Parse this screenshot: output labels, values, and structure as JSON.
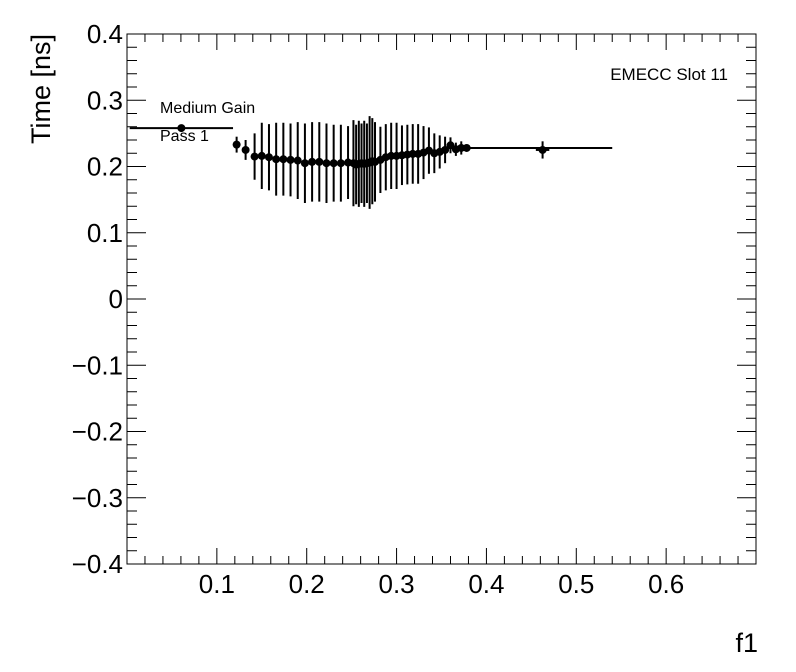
{
  "chart_data": {
    "type": "scatter",
    "title": "",
    "xlabel": "f1",
    "ylabel": "Time [ns]",
    "xlim": [
      0.0,
      0.7
    ],
    "ylim": [
      -0.4,
      0.4
    ],
    "grid": false,
    "legend": "none",
    "xticks": [
      {
        "value": 0.1,
        "label": "0.1"
      },
      {
        "value": 0.2,
        "label": "0.2"
      },
      {
        "value": 0.3,
        "label": "0.3"
      },
      {
        "value": 0.4,
        "label": "0.4"
      },
      {
        "value": 0.5,
        "label": "0.5"
      },
      {
        "value": 0.6,
        "label": "0.6"
      }
    ],
    "yticks": [
      {
        "value": 0.4,
        "label": "0.4"
      },
      {
        "value": 0.3,
        "label": "0.3"
      },
      {
        "value": 0.2,
        "label": "0.2"
      },
      {
        "value": 0.1,
        "label": "0.1"
      },
      {
        "value": 0.0,
        "label": "0"
      },
      {
        "value": -0.1,
        "label": "−0.1"
      },
      {
        "value": -0.2,
        "label": "−0.2"
      },
      {
        "value": -0.3,
        "label": "−0.3"
      },
      {
        "value": -0.4,
        "label": "−0.4"
      }
    ],
    "annotations": {
      "gain": "Medium Gain",
      "pass": "Pass 1",
      "slot": "EMECC Slot 11"
    },
    "marker_color": "#000000",
    "series": [
      {
        "points": [
          {
            "x": 0.0605,
            "xlo": 0.003,
            "xhi": 0.118,
            "y": 0.258,
            "yerr": 0.0
          },
          {
            "x": 0.122,
            "xlo": 0.118,
            "xhi": 0.126,
            "y": 0.233,
            "yerr": 0.012
          },
          {
            "x": 0.132,
            "xlo": 0.128,
            "xhi": 0.136,
            "y": 0.225,
            "yerr": 0.015
          },
          {
            "x": 0.142,
            "xlo": 0.138,
            "xhi": 0.146,
            "y": 0.215,
            "yerr": 0.035
          },
          {
            "x": 0.15,
            "y": 0.216,
            "yerr": 0.05
          },
          {
            "x": 0.158,
            "y": 0.214,
            "yerr": 0.05
          },
          {
            "x": 0.166,
            "y": 0.211,
            "yerr": 0.055
          },
          {
            "x": 0.174,
            "y": 0.211,
            "yerr": 0.055
          },
          {
            "x": 0.182,
            "y": 0.21,
            "yerr": 0.055
          },
          {
            "x": 0.19,
            "y": 0.209,
            "yerr": 0.058
          },
          {
            "x": 0.198,
            "y": 0.205,
            "yerr": 0.06
          },
          {
            "x": 0.206,
            "y": 0.207,
            "yerr": 0.06
          },
          {
            "x": 0.214,
            "y": 0.207,
            "yerr": 0.06
          },
          {
            "x": 0.222,
            "y": 0.205,
            "yerr": 0.06
          },
          {
            "x": 0.23,
            "y": 0.205,
            "yerr": 0.058
          },
          {
            "x": 0.238,
            "y": 0.205,
            "yerr": 0.058
          },
          {
            "x": 0.246,
            "y": 0.206,
            "yerr": 0.055
          },
          {
            "x": 0.252,
            "y": 0.205,
            "yerr": 0.065
          },
          {
            "x": 0.255,
            "y": 0.203,
            "yerr": 0.06
          },
          {
            "x": 0.258,
            "y": 0.204,
            "yerr": 0.065
          },
          {
            "x": 0.261,
            "y": 0.205,
            "yerr": 0.06
          },
          {
            "x": 0.264,
            "y": 0.204,
            "yerr": 0.065
          },
          {
            "x": 0.267,
            "y": 0.205,
            "yerr": 0.06
          },
          {
            "x": 0.27,
            "y": 0.206,
            "yerr": 0.07
          },
          {
            "x": 0.273,
            "y": 0.208,
            "yerr": 0.065
          },
          {
            "x": 0.276,
            "y": 0.207,
            "yerr": 0.06
          },
          {
            "x": 0.282,
            "y": 0.21,
            "yerr": 0.05
          },
          {
            "x": 0.288,
            "y": 0.214,
            "yerr": 0.05
          },
          {
            "x": 0.294,
            "y": 0.216,
            "yerr": 0.05
          },
          {
            "x": 0.3,
            "y": 0.216,
            "yerr": 0.05
          },
          {
            "x": 0.306,
            "y": 0.217,
            "yerr": 0.045
          },
          {
            "x": 0.312,
            "y": 0.218,
            "yerr": 0.045
          },
          {
            "x": 0.318,
            "y": 0.219,
            "yerr": 0.045
          },
          {
            "x": 0.324,
            "y": 0.219,
            "yerr": 0.045
          },
          {
            "x": 0.33,
            "y": 0.221,
            "yerr": 0.04
          },
          {
            "x": 0.336,
            "y": 0.224,
            "yerr": 0.035
          },
          {
            "x": 0.342,
            "y": 0.22,
            "yerr": 0.03
          },
          {
            "x": 0.348,
            "y": 0.222,
            "yerr": 0.025
          },
          {
            "x": 0.354,
            "y": 0.225,
            "yerr": 0.02
          },
          {
            "x": 0.36,
            "y": 0.232,
            "yerr": 0.012
          },
          {
            "x": 0.366,
            "y": 0.226,
            "yerr": 0.01
          },
          {
            "x": 0.372,
            "y": 0.228,
            "yerr": 0.01
          },
          {
            "x": 0.378,
            "xlo": 0.375,
            "xhi": 0.54,
            "y": 0.228,
            "yerr": 0.0
          },
          {
            "x": 0.4625,
            "xlo": 0.455,
            "xhi": 0.47,
            "y": 0.225,
            "yerr": 0.013
          }
        ]
      }
    ]
  }
}
